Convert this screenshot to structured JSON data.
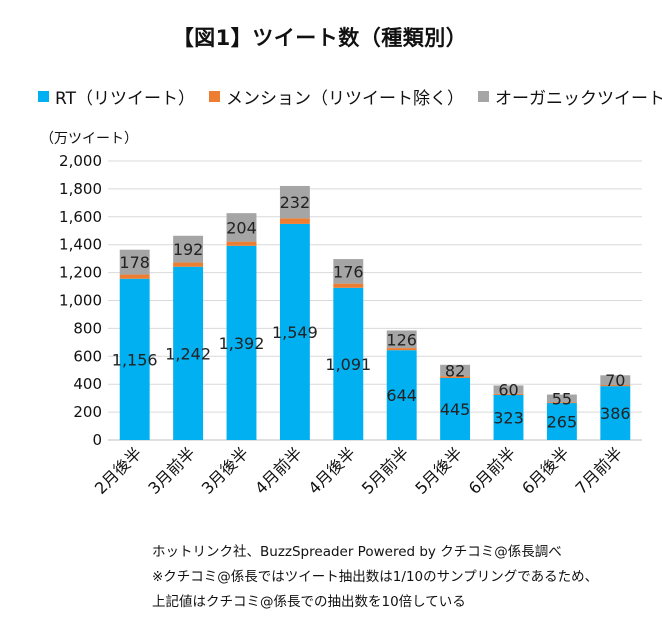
{
  "chart_data": {
    "type": "bar",
    "stacked": true,
    "title": "【図1】ツイート数（種類別）",
    "unit_label": "（万ツイート）",
    "categories": [
      "2月後半",
      "3月前半",
      "3月後半",
      "4月前半",
      "4月後半",
      "5月前半",
      "5月後半",
      "6月前半",
      "6月後半",
      "7月前半"
    ],
    "series": [
      {
        "name": "RT（リツイート）",
        "color": "#00b0f0",
        "values": [
          1156,
          1242,
          1392,
          1549,
          1091,
          644,
          445,
          323,
          265,
          386
        ]
      },
      {
        "name": "メンション（リツイート除く）",
        "color": "#ed7d31",
        "values": [
          30,
          30,
          30,
          40,
          30,
          15,
          12,
          8,
          6,
          8
        ]
      },
      {
        "name": "オーガニックツイート",
        "color": "#a5a5a5",
        "values": [
          178,
          192,
          204,
          232,
          176,
          126,
          82,
          60,
          55,
          70
        ]
      }
    ],
    "data_labels": {
      "rt": [
        "1,156",
        "1,242",
        "1,392",
        "1,549",
        "1,091",
        "644",
        "445",
        "323",
        "265",
        "386"
      ],
      "organic": [
        "178",
        "192",
        "204",
        "232",
        "176",
        "126",
        "82",
        "60",
        "55",
        "70"
      ]
    },
    "ylim": [
      0,
      2000
    ],
    "yticks": [
      0,
      200,
      400,
      600,
      800,
      1000,
      1200,
      1400,
      1600,
      1800,
      2000
    ],
    "ytick_labels": [
      "0",
      "200",
      "400",
      "600",
      "800",
      "1,000",
      "1,200",
      "1,400",
      "1,600",
      "1,800",
      "2,000"
    ],
    "grid": true,
    "legend_position": "top"
  },
  "source_lines": [
    "ホットリンク社、BuzzSpreader Powered by クチコミ@係長調べ",
    "※クチコミ@係長ではツイート抽出数は1/10のサンプリングであるため、",
    "上記値はクチコミ@係長での抽出数を10倍している"
  ]
}
